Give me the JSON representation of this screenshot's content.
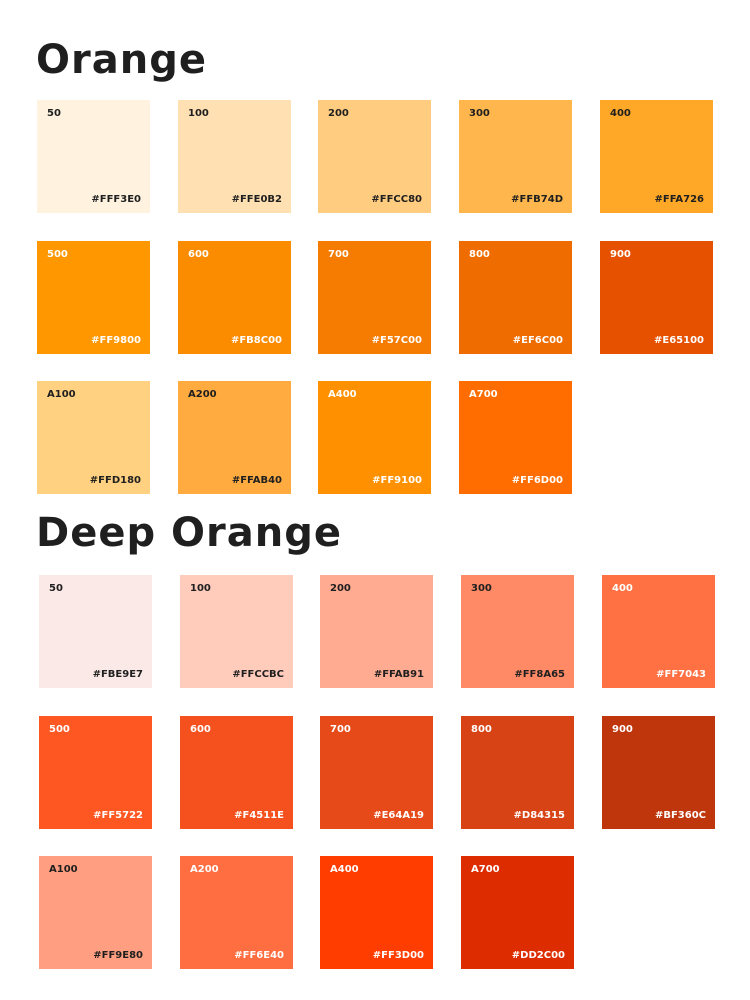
{
  "palettes": [
    {
      "title": "Orange",
      "swatches": [
        {
          "shade": "50",
          "hex": "#FFF3E0",
          "text_color": "#1f1f1f"
        },
        {
          "shade": "100",
          "hex": "#FFE0B2",
          "text_color": "#1f1f1f"
        },
        {
          "shade": "200",
          "hex": "#FFCC80",
          "text_color": "#1f1f1f"
        },
        {
          "shade": "300",
          "hex": "#FFB74D",
          "text_color": "#1f1f1f"
        },
        {
          "shade": "400",
          "hex": "#FFA726",
          "text_color": "#1f1f1f"
        },
        {
          "shade": "500",
          "hex": "#FF9800",
          "text_color": "#ffffff"
        },
        {
          "shade": "600",
          "hex": "#FB8C00",
          "text_color": "#ffffff"
        },
        {
          "shade": "700",
          "hex": "#F57C00",
          "text_color": "#ffffff"
        },
        {
          "shade": "800",
          "hex": "#EF6C00",
          "text_color": "#ffffff"
        },
        {
          "shade": "900",
          "hex": "#E65100",
          "text_color": "#ffffff"
        },
        {
          "shade": "A100",
          "hex": "#FFD180",
          "text_color": "#1f1f1f"
        },
        {
          "shade": "A200",
          "hex": "#FFAB40",
          "text_color": "#1f1f1f"
        },
        {
          "shade": "A400",
          "hex": "#FF9100",
          "text_color": "#ffffff"
        },
        {
          "shade": "A700",
          "hex": "#FF6D00",
          "text_color": "#ffffff"
        }
      ]
    },
    {
      "title": "Deep Orange",
      "swatches": [
        {
          "shade": "50",
          "hex": "#FBE9E7",
          "text_color": "#1f1f1f"
        },
        {
          "shade": "100",
          "hex": "#FFCCBC",
          "text_color": "#1f1f1f"
        },
        {
          "shade": "200",
          "hex": "#FFAB91",
          "text_color": "#1f1f1f"
        },
        {
          "shade": "300",
          "hex": "#FF8A65",
          "text_color": "#1f1f1f"
        },
        {
          "shade": "400",
          "hex": "#FF7043",
          "text_color": "#ffffff"
        },
        {
          "shade": "500",
          "hex": "#FF5722",
          "text_color": "#ffffff"
        },
        {
          "shade": "600",
          "hex": "#F4511E",
          "text_color": "#ffffff"
        },
        {
          "shade": "700",
          "hex": "#E64A19",
          "text_color": "#ffffff"
        },
        {
          "shade": "800",
          "hex": "#D84315",
          "text_color": "#ffffff"
        },
        {
          "shade": "900",
          "hex": "#BF360C",
          "text_color": "#ffffff"
        },
        {
          "shade": "A100",
          "hex": "#FF9E80",
          "text_color": "#1f1f1f"
        },
        {
          "shade": "A200",
          "hex": "#FF6E40",
          "text_color": "#ffffff"
        },
        {
          "shade": "A400",
          "hex": "#FF3D00",
          "text_color": "#ffffff"
        },
        {
          "shade": "A700",
          "hex": "#DD2C00",
          "text_color": "#ffffff"
        }
      ]
    }
  ]
}
